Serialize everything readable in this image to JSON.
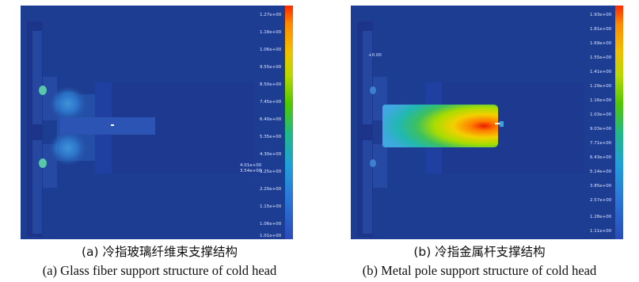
{
  "panel_a": {
    "caption_zh": "(a) 冷指玻璃纤维束支撑结构",
    "caption_en": "(a) Glass fiber support structure of cold head",
    "legend_labels": [
      "1.27e+00",
      "1.16e+00",
      "1.06e+00",
      "9.55e+00",
      "8.50e+00",
      "7.45e+00",
      "6.40e+00",
      "5.35e+00",
      "4.30e+00",
      "3.25e+00",
      "2.20e+00",
      "1.15e+00",
      "1.06e+00",
      "1.01e+00"
    ],
    "inner_labels": [
      "4.01e+00",
      "3.54e+00"
    ]
  },
  "panel_b": {
    "caption_zh": "(b) 冷指金属杆支撑结构",
    "caption_en": "(b) Metal pole support structure of cold head",
    "legend_labels": [
      "1.93e+00",
      "1.81e+00",
      "1.69e+00",
      "1.55e+00",
      "1.41e+00",
      "1.29e+00",
      "1.16e+00",
      "1.03e+00",
      "9.03e+00",
      "7.71e+00",
      "6.43e+00",
      "5.14e+00",
      "3.85e+00",
      "2.57e+00",
      "1.28e+00",
      "1.11e+00"
    ],
    "marker_label": "+0.00"
  },
  "colors": {
    "background": "#1d3d93",
    "dark_body": "#1d3a90",
    "scale": [
      "#ff2a00",
      "#ff8a00",
      "#f0c000",
      "#b8d800",
      "#50c800",
      "#20b888",
      "#20a0d8",
      "#2a78d8",
      "#2a4ab8"
    ]
  }
}
